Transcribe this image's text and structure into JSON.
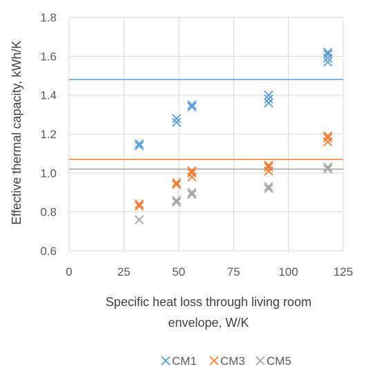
{
  "chart_data": {
    "type": "scatter",
    "xlabel": [
      "Specific heat loss through living room",
      "envelope, W/K"
    ],
    "ylabel": "Effective thermal capacity, kWh/K",
    "xlim": [
      0,
      125
    ],
    "ylim": [
      0.6,
      1.8
    ],
    "xticks": [
      "0",
      "25",
      "50",
      "75",
      "100",
      "125"
    ],
    "yticks": [
      "0.6",
      "0.8",
      "1.0",
      "1.2",
      "1.4",
      "1.6",
      "1.8"
    ],
    "grid": true,
    "legend_position": "bottom",
    "series": [
      {
        "name": "CM1",
        "color": "#5b9bd5",
        "points": [
          [
            32,
            1.14
          ],
          [
            32,
            1.15
          ],
          [
            49,
            1.26
          ],
          [
            49,
            1.28
          ],
          [
            56,
            1.34
          ],
          [
            56,
            1.35
          ],
          [
            91,
            1.36
          ],
          [
            91,
            1.38
          ],
          [
            91,
            1.4
          ],
          [
            118,
            1.57
          ],
          [
            118,
            1.59
          ],
          [
            118,
            1.61
          ],
          [
            118,
            1.62
          ]
        ],
        "reference_line": 1.48
      },
      {
        "name": "CM3",
        "color": "#ed7d31",
        "points": [
          [
            32,
            0.83
          ],
          [
            32,
            0.84
          ],
          [
            49,
            0.94
          ],
          [
            49,
            0.95
          ],
          [
            56,
            0.98
          ],
          [
            56,
            1.0
          ],
          [
            56,
            1.01
          ],
          [
            91,
            1.01
          ],
          [
            91,
            1.03
          ],
          [
            91,
            1.04
          ],
          [
            118,
            1.16
          ],
          [
            118,
            1.18
          ],
          [
            118,
            1.19
          ]
        ],
        "reference_line": 1.07
      },
      {
        "name": "CM5",
        "color": "#a5a5a5",
        "points": [
          [
            32,
            0.76
          ],
          [
            49,
            0.85
          ],
          [
            49,
            0.86
          ],
          [
            56,
            0.89
          ],
          [
            56,
            0.9
          ],
          [
            91,
            0.92
          ],
          [
            91,
            0.93
          ],
          [
            118,
            1.02
          ],
          [
            118,
            1.03
          ]
        ],
        "reference_line": 1.02
      }
    ]
  }
}
